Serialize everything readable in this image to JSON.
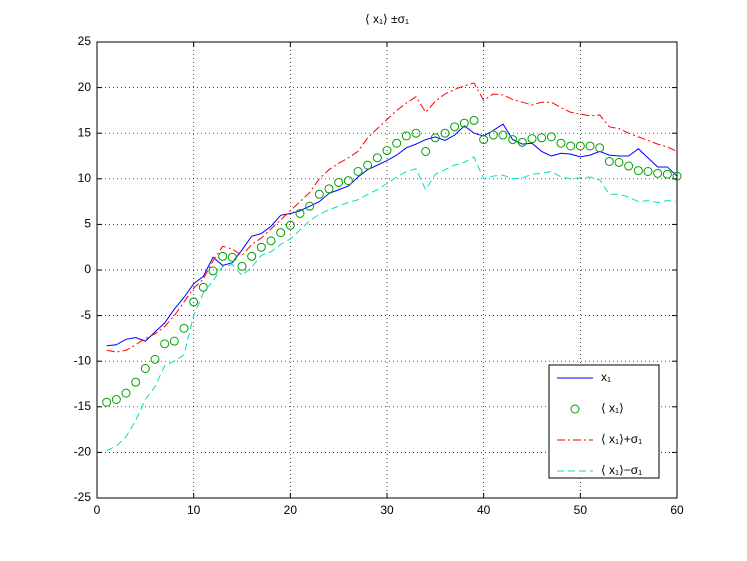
{
  "chart_data": {
    "type": "line",
    "title": "⟨ x₁⟩ ±σ₁",
    "x": [
      1,
      2,
      3,
      4,
      5,
      6,
      7,
      8,
      9,
      10,
      11,
      12,
      13,
      14,
      15,
      16,
      17,
      18,
      19,
      20,
      21,
      22,
      23,
      24,
      25,
      26,
      27,
      28,
      29,
      30,
      31,
      32,
      33,
      34,
      35,
      36,
      37,
      38,
      39,
      40,
      41,
      42,
      43,
      44,
      45,
      46,
      47,
      48,
      49,
      50,
      51,
      52,
      53,
      54,
      55,
      56,
      57,
      58,
      59,
      60
    ],
    "series": [
      {
        "name": "x₁",
        "color": "#0000ff",
        "style": "solid",
        "values": [
          -8.3,
          -8.2,
          -7.6,
          -7.4,
          -7.8,
          -6.8,
          -5.8,
          -4.3,
          -3.0,
          -1.5,
          -0.7,
          1.4,
          0.5,
          0.8,
          2.2,
          3.7,
          4.0,
          4.8,
          6.0,
          6.2,
          6.5,
          7.0,
          7.5,
          8.4,
          8.8,
          9.2,
          10.2,
          11.0,
          11.5,
          12.0,
          12.6,
          13.4,
          13.8,
          14.3,
          14.6,
          14.2,
          14.8,
          15.8,
          15.0,
          14.7,
          15.3,
          16.0,
          14.3,
          13.8,
          13.9,
          13.0,
          12.5,
          12.8,
          12.7,
          12.4,
          12.6,
          13.0,
          12.6,
          12.5,
          12.5,
          13.3,
          12.3,
          11.3,
          11.3,
          10.3
        ]
      },
      {
        "name": "⟨ x₁⟩",
        "color": "#00a000",
        "style": "circle",
        "values": [
          -14.5,
          -14.2,
          -13.5,
          -12.3,
          -10.8,
          -9.8,
          -8.1,
          -7.8,
          -6.4,
          -3.5,
          -1.9,
          -0.1,
          1.5,
          1.4,
          0.4,
          1.5,
          2.5,
          3.2,
          4.1,
          4.9,
          6.2,
          7.0,
          8.3,
          8.9,
          9.6,
          9.8,
          10.8,
          11.5,
          12.3,
          13.1,
          13.9,
          14.7,
          15.0,
          13.0,
          14.5,
          15.0,
          15.7,
          16.1,
          16.4,
          14.3,
          14.8,
          14.8,
          14.3,
          14.0,
          14.4,
          14.5,
          14.6,
          13.9,
          13.6,
          13.6,
          13.6,
          13.4,
          11.9,
          11.8,
          11.4,
          10.9,
          10.8,
          10.6,
          10.5,
          10.3
        ]
      },
      {
        "name": "⟨ x₁⟩+σ₁",
        "color": "#ff0000",
        "style": "dashdot",
        "values": [
          -8.8,
          -9.0,
          -8.8,
          -8.2,
          -7.5,
          -7.0,
          -6.2,
          -5.0,
          -3.5,
          -2.0,
          -1.0,
          1.0,
          2.6,
          2.3,
          1.6,
          2.8,
          3.5,
          4.5,
          5.5,
          6.5,
          7.5,
          8.5,
          10.0,
          11.0,
          11.7,
          12.3,
          13.0,
          14.5,
          15.5,
          16.5,
          17.5,
          18.3,
          19.0,
          17.3,
          18.5,
          19.3,
          19.8,
          20.2,
          20.5,
          18.6,
          19.3,
          19.2,
          18.7,
          18.4,
          18.1,
          18.4,
          18.4,
          17.8,
          17.3,
          17.1,
          16.9,
          17.0,
          15.7,
          15.5,
          15.0,
          14.6,
          14.2,
          13.8,
          13.5,
          13.0
        ]
      },
      {
        "name": "⟨ x₁⟩−σ₁",
        "color": "#00e0c0",
        "style": "dashed",
        "values": [
          -19.8,
          -19.3,
          -18.3,
          -16.5,
          -14.2,
          -12.8,
          -10.5,
          -10.0,
          -9.3,
          -5.0,
          -2.5,
          -1.2,
          0.4,
          0.6,
          -0.6,
          0.3,
          1.6,
          2.0,
          2.8,
          3.4,
          4.4,
          5.4,
          6.1,
          6.6,
          7.0,
          7.4,
          7.7,
          8.3,
          8.8,
          9.5,
          10.2,
          10.8,
          11.1,
          8.8,
          10.5,
          11.0,
          11.5,
          11.8,
          12.4,
          10.0,
          10.3,
          10.4,
          10.0,
          10.1,
          10.5,
          10.6,
          10.8,
          10.2,
          10.0,
          10.1,
          10.2,
          9.9,
          8.3,
          8.3,
          8.0,
          7.5,
          7.6,
          7.4,
          7.6,
          7.5
        ]
      }
    ],
    "xlim": [
      0,
      60
    ],
    "xticks": [
      0,
      10,
      20,
      30,
      40,
      50,
      60
    ],
    "ylim": [
      -25,
      25
    ],
    "yticks": [
      -25,
      -20,
      -15,
      -10,
      -5,
      0,
      5,
      10,
      15,
      20,
      25
    ],
    "grid": true,
    "legend": "southeast"
  }
}
